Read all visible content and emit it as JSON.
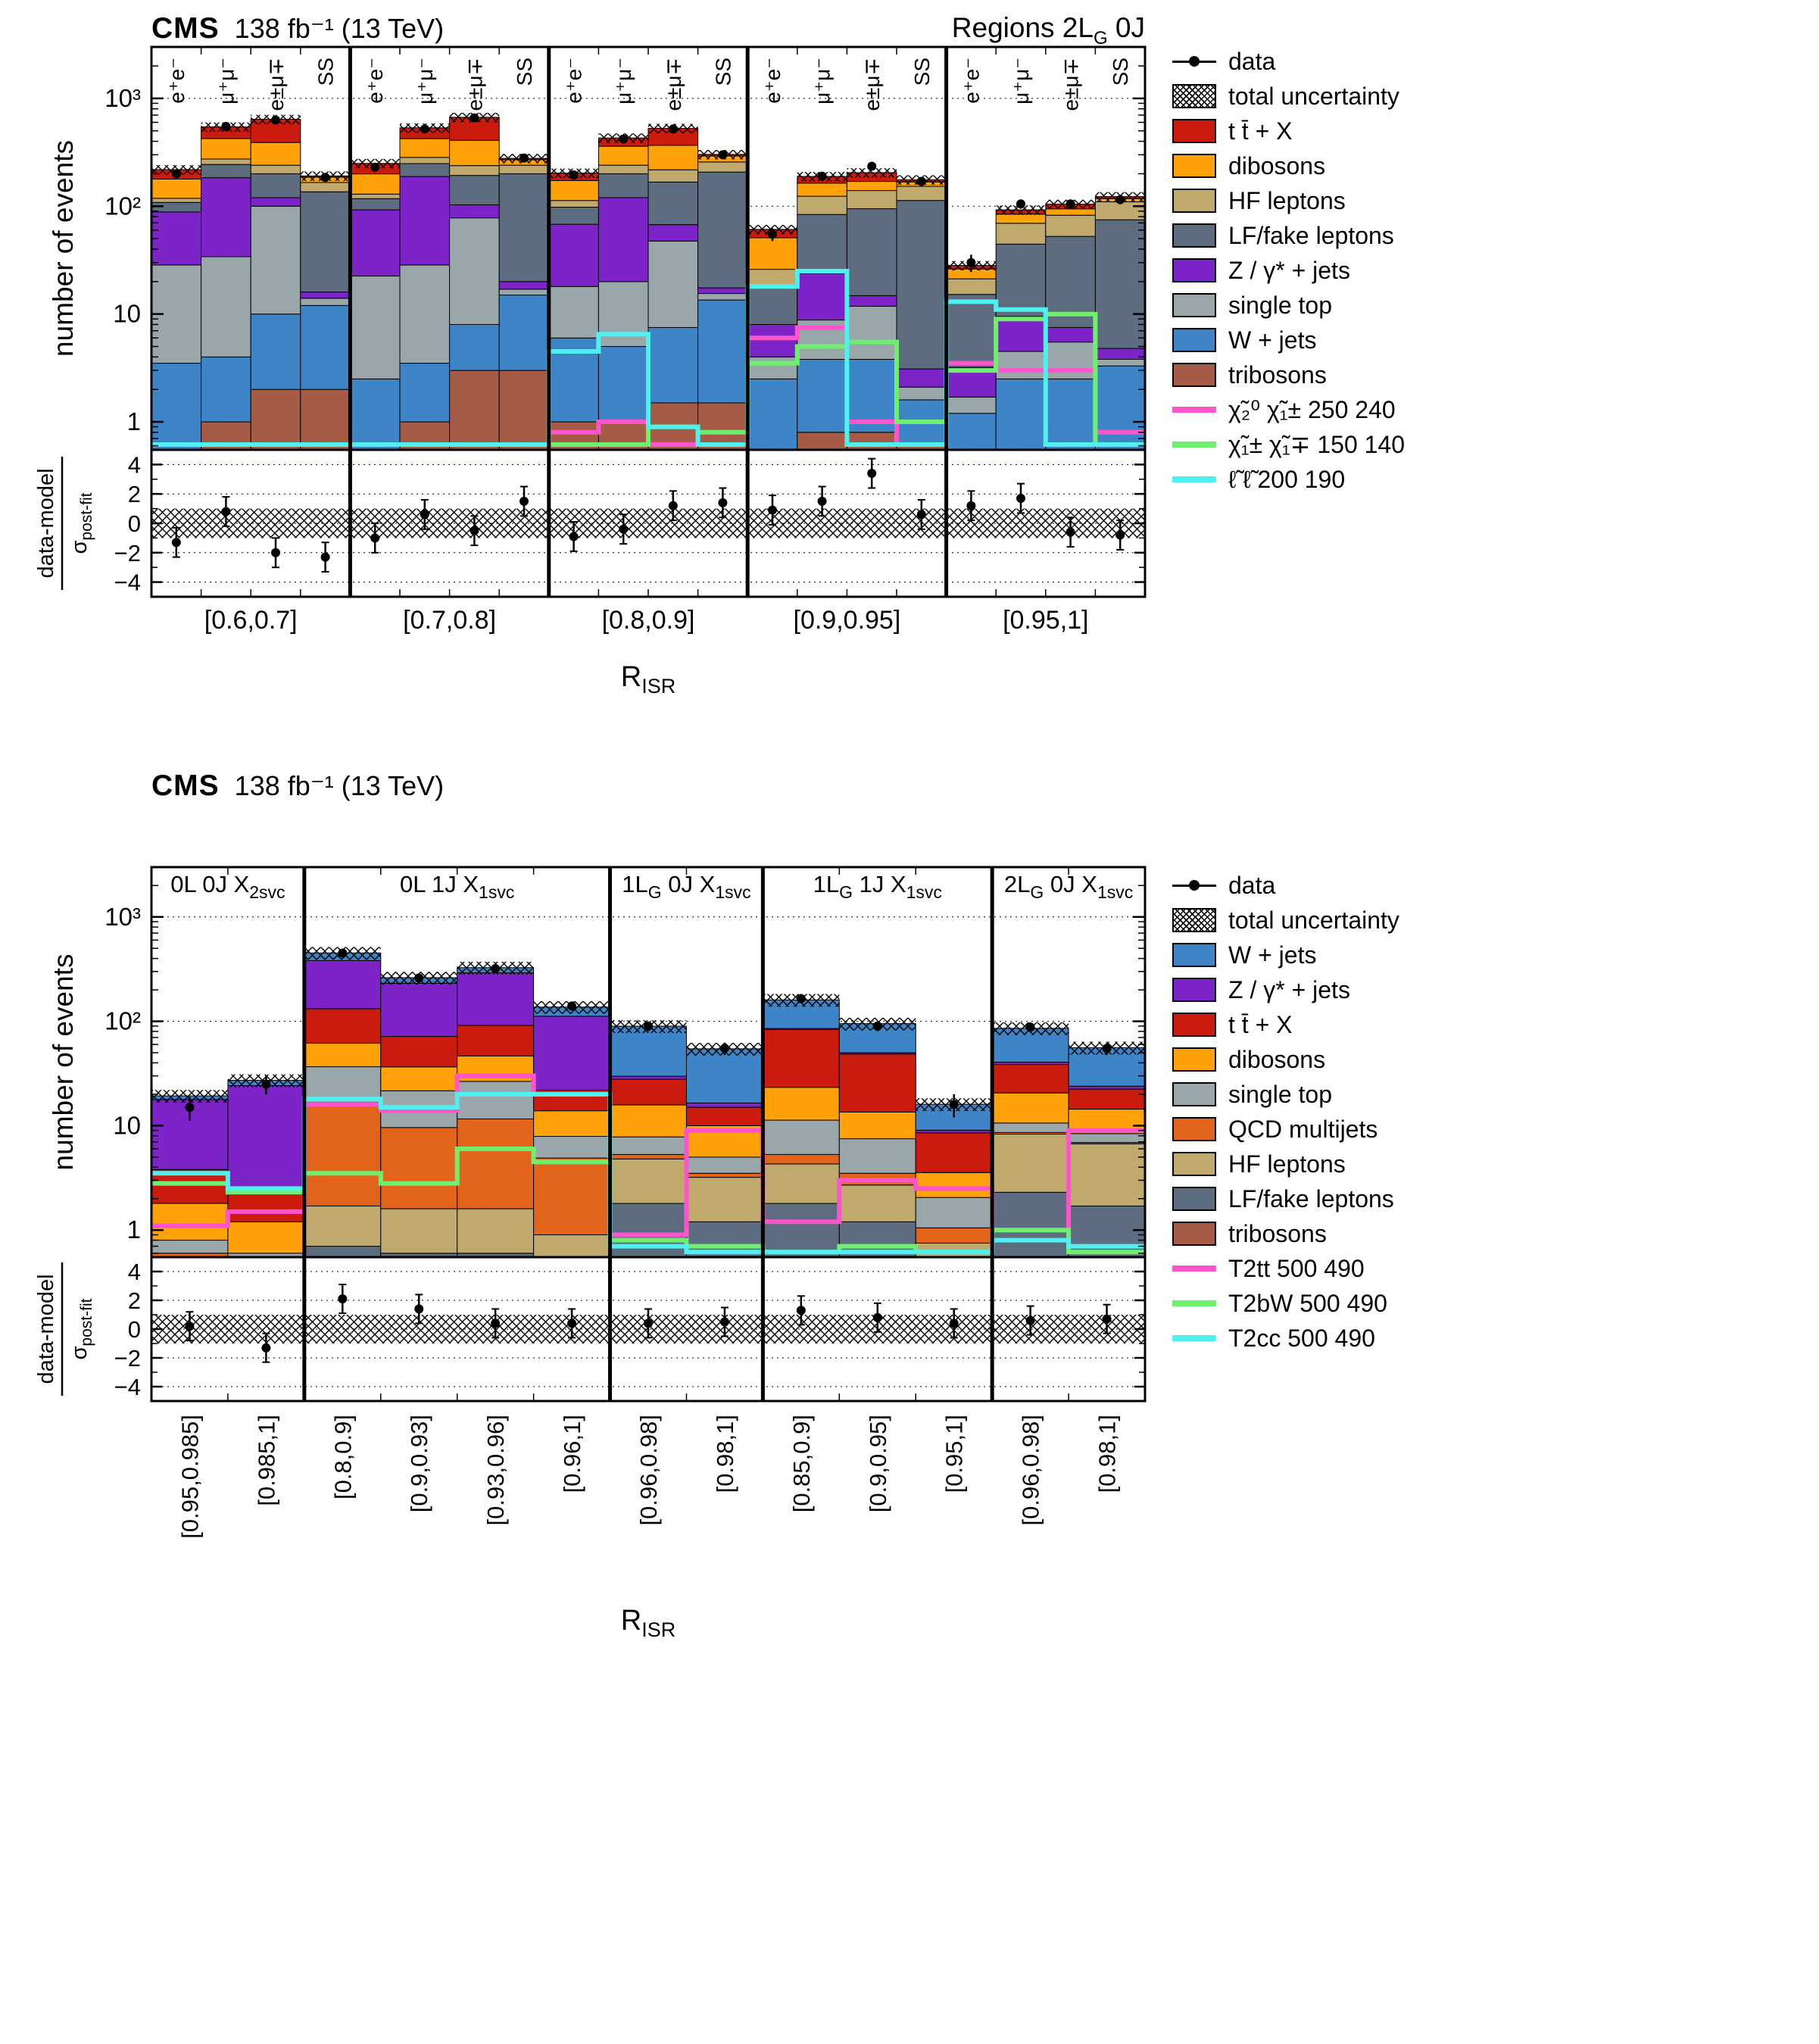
{
  "chart_data": [
    {
      "type": "bar",
      "stack": true,
      "yscale": "log",
      "header": {
        "cms": "CMS",
        "lumi": "138 fb⁻¹ (13 TeV)",
        "right_segments": [
          {
            "t": "Regions  2L"
          },
          {
            "t": "G",
            "sub": true
          },
          {
            "t": "  0J"
          }
        ]
      },
      "ylabel": "number of events",
      "ratio_label": {
        "numerator": "data-model",
        "sigma": "σ",
        "sigma_sub": "post-fit"
      },
      "xlabel": {
        "base": "R",
        "sub": "ISR"
      },
      "ylim": [
        0.55,
        3000
      ],
      "ratio_ylim": [
        -5,
        5
      ],
      "unc_frac": 0.1,
      "yticks": [
        {
          "v": 1,
          "label": "1"
        },
        {
          "v": 10,
          "label": "10"
        },
        {
          "v": 100,
          "label": "10²"
        },
        {
          "v": 1000,
          "label": "10³"
        }
      ],
      "ratio_yticks": [
        {
          "v": -4,
          "label": "−4"
        },
        {
          "v": -2,
          "label": "−2"
        },
        {
          "v": 0,
          "label": "0"
        },
        {
          "v": 2,
          "label": "2"
        },
        {
          "v": 4,
          "label": "4"
        }
      ],
      "channels": {
        "labels": [
          "e⁺e⁻",
          "μ⁺μ⁻",
          "e±μ∓",
          "SS"
        ],
        "colors": [
          "#000000",
          "#1e5c1e",
          "#8b1a1a",
          "#8a7500"
        ]
      },
      "regions": [
        {
          "label": "[0.6,0.7]"
        },
        {
          "label": "[0.7,0.8]"
        },
        {
          "label": "[0.8,0.9]"
        },
        {
          "label": "[0.9,0.95]"
        },
        {
          "label": "[0.95,1]"
        }
      ],
      "series": [
        {
          "name": "tribosons",
          "color": "#a55b45",
          "values": [
            0.5,
            1,
            2,
            2,
            0.5,
            1,
            3,
            3,
            1,
            1,
            1.5,
            1.5,
            0.5,
            0.8,
            0.8,
            0.6,
            0.2,
            0.5,
            0.5,
            0.3
          ]
        },
        {
          "name": "W + jets",
          "color": "#3e85c8",
          "values": [
            3,
            3,
            8,
            10,
            2,
            2.5,
            5,
            12,
            5,
            4,
            6,
            12,
            2,
            3,
            3,
            1,
            1,
            2,
            2,
            3
          ]
        },
        {
          "name": "single top",
          "color": "#9aa7aa",
          "values": [
            25,
            30,
            90,
            2,
            20,
            25,
            70,
            2,
            12,
            15,
            40,
            2,
            1.5,
            5,
            8,
            0.5,
            0.5,
            2,
            3,
            0.5
          ]
        },
        {
          "name": "Z / γ* + jets",
          "color": "#7c24c8",
          "values": [
            60,
            150,
            20,
            2,
            70,
            160,
            25,
            3,
            50,
            100,
            20,
            2,
            4,
            15,
            3,
            1,
            1.5,
            5,
            2,
            1
          ]
        },
        {
          "name": "LF/fake leptons",
          "color": "#5e6c80",
          "values": [
            20,
            60,
            80,
            120,
            25,
            60,
            90,
            180,
            30,
            80,
            100,
            190,
            10,
            60,
            80,
            110,
            12,
            35,
            45,
            70
          ]
        },
        {
          "name": "HF leptons",
          "color": "#bfa96c",
          "values": [
            10,
            30,
            40,
            30,
            12,
            35,
            45,
            40,
            15,
            40,
            50,
            50,
            8,
            40,
            45,
            40,
            6,
            25,
            30,
            35
          ]
        },
        {
          "name": "dibosons",
          "color": "#ffa20a",
          "values": [
            60,
            150,
            150,
            20,
            70,
            140,
            170,
            30,
            60,
            120,
            150,
            35,
            25,
            40,
            30,
            15,
            5,
            15,
            12,
            8
          ]
        },
        {
          "name": "t t̄ + X",
          "color": "#cb1b0e",
          "values": [
            40,
            120,
            250,
            5,
            50,
            110,
            260,
            8,
            30,
            70,
            160,
            10,
            10,
            25,
            35,
            8,
            2,
            8,
            10,
            5
          ]
        }
      ],
      "signals": [
        {
          "name": "χ̃₂⁰ χ̃₁± 250 240",
          "color": "#ff55cc",
          "values": [
            0.5,
            0.5,
            0.5,
            0.5,
            0.5,
            0.5,
            0.5,
            0.5,
            0.8,
            1.0,
            0.5,
            0.5,
            6,
            7.5,
            1.0,
            0.5,
            3.5,
            3,
            3,
            0.8
          ]
        },
        {
          "name": "χ̃₁± χ̃₁∓ 150 140",
          "color": "#6ef06e",
          "values": [
            0.5,
            0.5,
            0.5,
            0.5,
            0.5,
            0.5,
            0.5,
            0.5,
            0.5,
            0.5,
            0.9,
            0.8,
            3.5,
            5,
            5.5,
            1.0,
            3,
            9,
            10,
            0.6
          ]
        },
        {
          "name": "ℓ̃ ℓ̃ 200 190",
          "color": "#4ff0f0",
          "values": [
            0.5,
            0.5,
            0.5,
            0.5,
            0.5,
            0.5,
            0.5,
            0.5,
            4.5,
            6.5,
            0.9,
            0.5,
            18,
            25,
            0.6,
            0.5,
            13,
            11,
            0.5,
            0.5
          ]
        }
      ],
      "data_points": [
        200,
        550,
        630,
        185,
        230,
        520,
        660,
        280,
        195,
        420,
        520,
        300,
        55,
        190,
        235,
        170,
        30,
        105,
        105,
        115
      ],
      "data_ratio": [
        -1.3,
        0.8,
        -2.0,
        -2.3,
        -1.0,
        0.6,
        -0.5,
        1.5,
        -0.9,
        -0.4,
        1.2,
        1.4,
        0.9,
        1.5,
        3.4,
        0.6,
        1.2,
        1.7,
        -0.6,
        -0.8
      ],
      "legend": [
        {
          "type": "data",
          "label": "data"
        },
        {
          "type": "hatch",
          "label": "total uncertainty"
        },
        {
          "type": "fill",
          "color": "#cb1b0e",
          "label": "t t̄ + X"
        },
        {
          "type": "fill",
          "color": "#ffa20a",
          "label": "dibosons"
        },
        {
          "type": "fill",
          "color": "#bfa96c",
          "label": "HF leptons"
        },
        {
          "type": "fill",
          "color": "#5e6c80",
          "label": "LF/fake leptons"
        },
        {
          "type": "fill",
          "color": "#7c24c8",
          "label": "Z / γ* + jets"
        },
        {
          "type": "fill",
          "color": "#9aa7aa",
          "label": "single top"
        },
        {
          "type": "fill",
          "color": "#3e85c8",
          "label": "W + jets"
        },
        {
          "type": "fill",
          "color": "#a55b45",
          "label": "tribosons"
        },
        {
          "type": "line",
          "color": "#ff55cc",
          "label": "χ̃₂⁰ χ̃₁± 250 240"
        },
        {
          "type": "line",
          "color": "#6ef06e",
          "label": "χ̃₁± χ̃₁∓ 150 140"
        },
        {
          "type": "line",
          "color": "#4ff0f0",
          "label": "ℓ̃ ℓ̃ 200 190"
        }
      ]
    },
    {
      "type": "bar",
      "stack": true,
      "yscale": "log",
      "header": {
        "cms": "CMS",
        "lumi": "138 fb⁻¹ (13 TeV)"
      },
      "ylabel": "number of events",
      "ratio_label": {
        "numerator": "data-model",
        "sigma": "σ",
        "sigma_sub": "post-fit"
      },
      "xlabel": {
        "base": "R",
        "sub": "ISR"
      },
      "ylim": [
        0.55,
        3000
      ],
      "ratio_ylim": [
        -5,
        5
      ],
      "unc_frac": 0.14,
      "yticks": [
        {
          "v": 1,
          "label": "1"
        },
        {
          "v": 10,
          "label": "10"
        },
        {
          "v": 100,
          "label": "10²"
        },
        {
          "v": 1000,
          "label": "10³"
        }
      ],
      "ratio_yticks": [
        {
          "v": -4,
          "label": "−4"
        },
        {
          "v": -2,
          "label": "−2"
        },
        {
          "v": 0,
          "label": "0"
        },
        {
          "v": 2,
          "label": "2"
        },
        {
          "v": 4,
          "label": "4"
        }
      ],
      "regions": [
        {
          "header_segments": [
            {
              "t": "0L 0J X"
            },
            {
              "t": "2svc",
              "sub": true
            }
          ],
          "bin_labels": [
            "[0.95,0.985]",
            "[0.985,1]"
          ]
        },
        {
          "header_segments": [
            {
              "t": "0L 1J X"
            },
            {
              "t": "1svc",
              "sub": true
            }
          ],
          "bin_labels": [
            "[0.8,0.9]",
            "[0.9,0.93]",
            "[0.93,0.96]",
            "[0.96,1]"
          ]
        },
        {
          "header_segments": [
            {
              "t": "1L"
            },
            {
              "t": "G",
              "sub": true
            },
            {
              "t": " 0J X"
            },
            {
              "t": "1svc",
              "sub": true
            }
          ],
          "bin_labels": [
            "[0.96,0.98]",
            "[0.98,1]"
          ]
        },
        {
          "header_segments": [
            {
              "t": "1L"
            },
            {
              "t": "G",
              "sub": true
            },
            {
              "t": " 1J X"
            },
            {
              "t": "1svc",
              "sub": true
            }
          ],
          "bin_labels": [
            "[0.85,0.9]",
            "[0.9,0.95]",
            "[0.95,1]"
          ]
        },
        {
          "header_segments": [
            {
              "t": "2L"
            },
            {
              "t": "G",
              "sub": true
            },
            {
              "t": " 0J X"
            },
            {
              "t": "1svc",
              "sub": true
            }
          ],
          "bin_labels": [
            "[0.96,0.98]",
            "[0.98,1]"
          ]
        }
      ],
      "series": [
        {
          "name": "tribosons",
          "color": "#a55b45",
          "values": [
            0.05,
            0.05,
            0.2,
            0.1,
            0.1,
            0.1,
            0.3,
            0.2,
            0.3,
            0.2,
            0.05,
            0.3,
            0.2
          ]
        },
        {
          "name": "LF/fake leptons",
          "color": "#5e6c80",
          "values": [
            0.1,
            0.1,
            0.5,
            0.5,
            0.5,
            0.3,
            1.5,
            1.0,
            1.5,
            1.0,
            0.3,
            2.0,
            1.5
          ]
        },
        {
          "name": "HF leptons",
          "color": "#bfa96c",
          "values": [
            0.15,
            0.1,
            1.0,
            1.0,
            1.0,
            0.5,
            3.0,
            2.0,
            2.5,
            1.5,
            0.4,
            6.0,
            5.0
          ]
        },
        {
          "name": "QCD multijets",
          "color": "#e2641a",
          "values": [
            0.3,
            0.2,
            15,
            8,
            10,
            4,
            0.5,
            0.3,
            1.0,
            0.8,
            0.3,
            0.3,
            0.2
          ]
        },
        {
          "name": "single top",
          "color": "#9aa7aa",
          "values": [
            0.2,
            0.15,
            20,
            12,
            15,
            3,
            2.5,
            1.5,
            6,
            4,
            1.0,
            2.0,
            1.5
          ]
        },
        {
          "name": "dibosons",
          "color": "#ffa20a",
          "values": [
            1.0,
            0.6,
            25,
            15,
            20,
            6,
            8,
            5,
            12,
            6,
            1.5,
            10,
            6
          ]
        },
        {
          "name": "t t̄ + X",
          "color": "#cb1b0e",
          "values": [
            2.0,
            1.0,
            70,
            35,
            45,
            8,
            12,
            5,
            60,
            35,
            5,
            18,
            8
          ]
        },
        {
          "name": "Z / γ* + jets",
          "color": "#7c24c8",
          "values": [
            14,
            22,
            250,
            160,
            200,
            90,
            2,
            1.5,
            2,
            1.5,
            0.5,
            2,
            1.5
          ]
        },
        {
          "name": "W + jets",
          "color": "#3e85c8",
          "values": [
            1.5,
            3,
            70,
            30,
            35,
            25,
            60,
            38,
            75,
            45,
            7,
            45,
            32
          ]
        }
      ],
      "signals": [
        {
          "name": "T2tt 500 490",
          "color": "#ff55cc",
          "values": [
            1.1,
            1.5,
            16,
            14,
            30,
            20,
            0.9,
            9,
            1.2,
            3,
            2.5,
            1.0,
            9
          ]
        },
        {
          "name": "T2bW 500 490",
          "color": "#6ef06e",
          "values": [
            2.8,
            2.3,
            3.5,
            2.8,
            6,
            4.5,
            0.8,
            0.7,
            0.6,
            0.7,
            0.6,
            1.0,
            0.6
          ]
        },
        {
          "name": "T2cc 500 490",
          "color": "#4ff0f0",
          "values": [
            3.5,
            2.5,
            18,
            15,
            20,
            20,
            0.7,
            0.6,
            0.5,
            0.6,
            0.5,
            0.8,
            0.7
          ]
        }
      ],
      "data_points": [
        15,
        25,
        450,
        260,
        320,
        140,
        90,
        55,
        165,
        90,
        16,
        88,
        55
      ],
      "data_ratio": [
        0.2,
        -1.3,
        2.1,
        1.4,
        0.4,
        0.4,
        0.4,
        0.5,
        1.3,
        0.8,
        0.4,
        0.6,
        0.7
      ],
      "legend": [
        {
          "type": "data",
          "label": "data"
        },
        {
          "type": "hatch",
          "label": "total uncertainty"
        },
        {
          "type": "fill",
          "color": "#3e85c8",
          "label": "W + jets"
        },
        {
          "type": "fill",
          "color": "#7c24c8",
          "label": "Z / γ* + jets"
        },
        {
          "type": "fill",
          "color": "#cb1b0e",
          "label": "t t̄ + X"
        },
        {
          "type": "fill",
          "color": "#ffa20a",
          "label": "dibosons"
        },
        {
          "type": "fill",
          "color": "#9aa7aa",
          "label": "single top"
        },
        {
          "type": "fill",
          "color": "#e2641a",
          "label": "QCD multijets"
        },
        {
          "type": "fill",
          "color": "#bfa96c",
          "label": "HF leptons"
        },
        {
          "type": "fill",
          "color": "#5e6c80",
          "label": "LF/fake leptons"
        },
        {
          "type": "fill",
          "color": "#a55b45",
          "label": "tribosons"
        },
        {
          "type": "line",
          "color": "#ff55cc",
          "label": "T2tt 500 490"
        },
        {
          "type": "line",
          "color": "#6ef06e",
          "label": "T2bW 500 490"
        },
        {
          "type": "line",
          "color": "#4ff0f0",
          "label": "T2cc 500 490"
        }
      ]
    }
  ]
}
